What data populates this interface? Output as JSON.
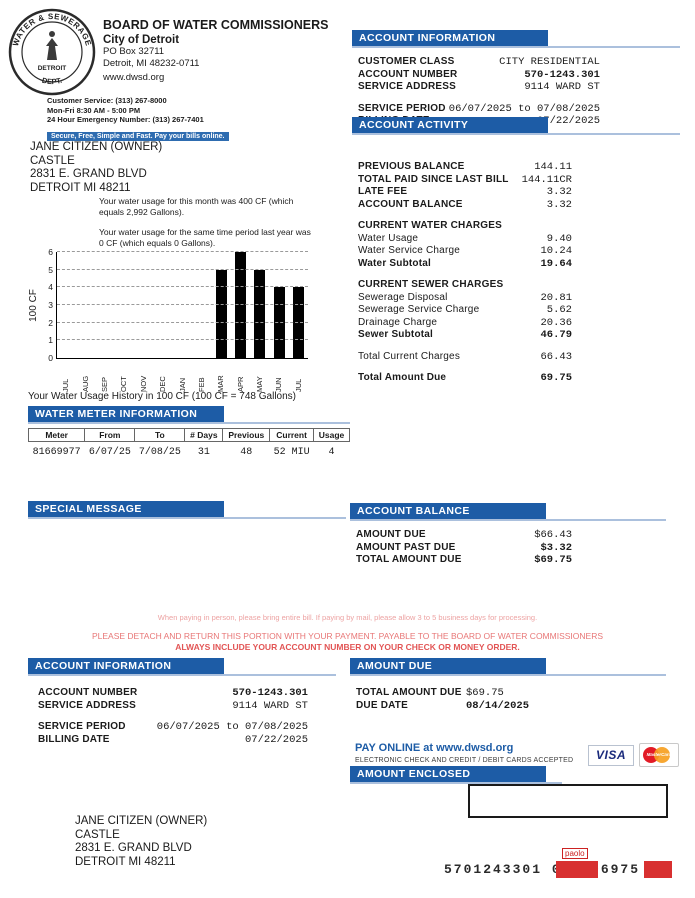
{
  "header": {
    "logo": {
      "arc_top": "WATER & SEWERAGE",
      "arc_bottom": "DEPT.",
      "center": "DETROIT"
    },
    "org_name": "BOARD OF WATER COMMISSIONERS",
    "city": "City of Detroit",
    "address1": "PO Box 32711",
    "address2": "Detroit, MI 48232-0711",
    "website": "www.dwsd.org",
    "customer_service": "Customer Service: (313) 267-8000",
    "hours": "Mon-Fri 8:30 AM - 5:00 PM",
    "emergency": "24 Hour Emergency Number: (313) 267-7401",
    "online_banner": "Secure, Free, Simple and Fast.  Pay your bills online."
  },
  "recipient": {
    "lines": [
      "JANE CITIZEN (OWNER)",
      "CASTLE",
      "2831 E. GRAND BLVD",
      "DETROIT MI 48211"
    ]
  },
  "usage_notes": [
    "Your water usage for this month was 400 CF (which equals 2,992 Gallons).",
    "Your water usage for the same time period last year was 0 CF (which equals 0 Gallons)."
  ],
  "chart_data": {
    "type": "bar",
    "categories": [
      "JUL",
      "AUG",
      "SEP",
      "OCT",
      "NOV",
      "DEC",
      "JAN",
      "FEB",
      "MAR",
      "APR",
      "MAY",
      "JUN",
      "JUL"
    ],
    "values": [
      0,
      0,
      0,
      0,
      0,
      0,
      0,
      0,
      5,
      6,
      5,
      4,
      4
    ],
    "title": "",
    "xlabel": "",
    "ylabel": "100 CF",
    "ylim": [
      0,
      6
    ],
    "yticks": [
      0,
      1,
      2,
      3,
      4,
      5,
      6
    ],
    "grid": "dashed",
    "legend": "none",
    "bar_color": "#000000",
    "caption": "Your Water Usage History in 100 CF (100 CF = 748 Gallons)"
  },
  "water_meter": {
    "title": "WATER METER INFORMATION",
    "columns": [
      "Meter",
      "From",
      "To",
      "# Days",
      "Previous",
      "Current",
      "Usage"
    ],
    "rows": [
      [
        "81669977",
        "6/07/25",
        "7/08/25",
        "31",
        "48",
        "52 MIU",
        "4"
      ]
    ]
  },
  "account_information": {
    "title": "ACCOUNT INFORMATION",
    "rows": [
      {
        "label": "CUSTOMER CLASS",
        "value": "CITY RESIDENTIAL",
        "s": "bl"
      },
      {
        "label": "ACCOUNT NUMBER",
        "value": "570-1243.301",
        "s": "b"
      },
      {
        "label": "SERVICE ADDRESS",
        "value": "9114 WARD ST",
        "s": "bl"
      },
      {
        "label": "SERVICE PERIOD",
        "value": "06/07/2025 to 07/08/2025",
        "s": "bl",
        "gap": true
      },
      {
        "label": "BILLING DATE",
        "value": "07/22/2025",
        "s": "bl"
      }
    ]
  },
  "account_activity": {
    "title": "ACCOUNT ACTIVITY",
    "rows": [
      {
        "label": "PREVIOUS BALANCE",
        "value": "144.11",
        "s": "bl"
      },
      {
        "label": "TOTAL PAID SINCE LAST BILL",
        "value": "144.11CR",
        "s": "bl"
      },
      {
        "label": "LATE FEE",
        "value": "3.32",
        "s": "bl"
      },
      {
        "label": "ACCOUNT BALANCE",
        "value": "3.32",
        "s": "bl"
      },
      {
        "label": "CURRENT WATER CHARGES",
        "value": "",
        "s": "sub"
      },
      {
        "label": "Water Usage",
        "value": "9.40"
      },
      {
        "label": "Water Service Charge",
        "value": "10.24"
      },
      {
        "label": "Water Subtotal",
        "value": "19.64",
        "s": "b"
      },
      {
        "label": "CURRENT SEWER CHARGES",
        "value": "",
        "s": "sub"
      },
      {
        "label": "Sewerage Disposal",
        "value": "20.81"
      },
      {
        "label": "Sewerage Service Charge",
        "value": "5.62"
      },
      {
        "label": "Drainage Charge",
        "value": "20.36"
      },
      {
        "label": "Sewer Subtotal",
        "value": "46.79",
        "s": "b"
      },
      {
        "label": "Total Current Charges",
        "value": "66.43",
        "gap": true
      },
      {
        "label": "Total Amount Due",
        "value": "69.75",
        "s": "b",
        "gap": true
      }
    ]
  },
  "special_message": {
    "title": "SPECIAL MESSAGE"
  },
  "account_balance": {
    "title": "ACCOUNT BALANCE",
    "rows": [
      {
        "label": "AMOUNT DUE",
        "value": "$66.43",
        "s": "bl"
      },
      {
        "label": "AMOUNT PAST DUE",
        "value": "$3.32",
        "s": "b"
      },
      {
        "label": "TOTAL AMOUNT DUE",
        "value": "$69.75",
        "s": "b"
      }
    ]
  },
  "notices": {
    "line1": "When paying in person, please bring entire bill.  If paying by mail, please allow 3 to 5 business days for processing.",
    "line2": "PLEASE DETACH AND RETURN THIS PORTION WITH YOUR PAYMENT. PAYABLE TO THE BOARD OF WATER COMMISSIONERS",
    "line3": "ALWAYS INCLUDE YOUR ACCOUNT NUMBER ON YOUR CHECK OR MONEY ORDER."
  },
  "stub": {
    "account_information": {
      "title": "ACCOUNT INFORMATION",
      "rows": [
        {
          "label": "ACCOUNT NUMBER",
          "value": "570-1243.301",
          "s": "b"
        },
        {
          "label": "SERVICE ADDRESS",
          "value": "9114 WARD ST",
          "s": "bl"
        },
        {
          "label": "SERVICE PERIOD",
          "value": "06/07/2025 to 07/08/2025",
          "s": "bl",
          "gap": true
        },
        {
          "label": "BILLING DATE",
          "value": "07/22/2025",
          "s": "bl"
        }
      ]
    },
    "amount_due": {
      "title": "AMOUNT DUE",
      "rows": [
        {
          "label": "TOTAL AMOUNT DUE",
          "value": "$69.75",
          "s": "bl"
        },
        {
          "label": "DUE DATE",
          "value": "08/14/2025",
          "s": "b"
        }
      ]
    },
    "pay_online": "PAY ONLINE at www.dwsd.org",
    "cards_note": "ELECTRONIC CHECK AND CREDIT / DEBIT CARDS ACCEPTED",
    "visa_label": "VISA",
    "mastercard_label": "MasterCard",
    "amount_enclosed_title": "AMOUNT ENCLOSED",
    "recipient": {
      "lines": [
        "JANE CITIZEN (OWNER)",
        "CASTLE",
        "2831 E. GRAND BLVD",
        "DETROIT MI 48211"
      ]
    },
    "scanline": "5701243301 000006975 4",
    "stamp_text": "paolo"
  },
  "colors": {
    "header_bar_blue": "#1d5ca6",
    "header_bar_shadow": "#90a9cb",
    "header_rule_blue": "#abc0dd",
    "banner_blue": "#2e6cb0",
    "notice_pink": "#eda3a3",
    "notice_red": "#e25555",
    "bar_black": "#000000",
    "stamp_red": "#d83030",
    "visa_blue": "#1a2a7c",
    "mastercard_red": "#e21b26",
    "mastercard_orange": "#f6a021"
  }
}
